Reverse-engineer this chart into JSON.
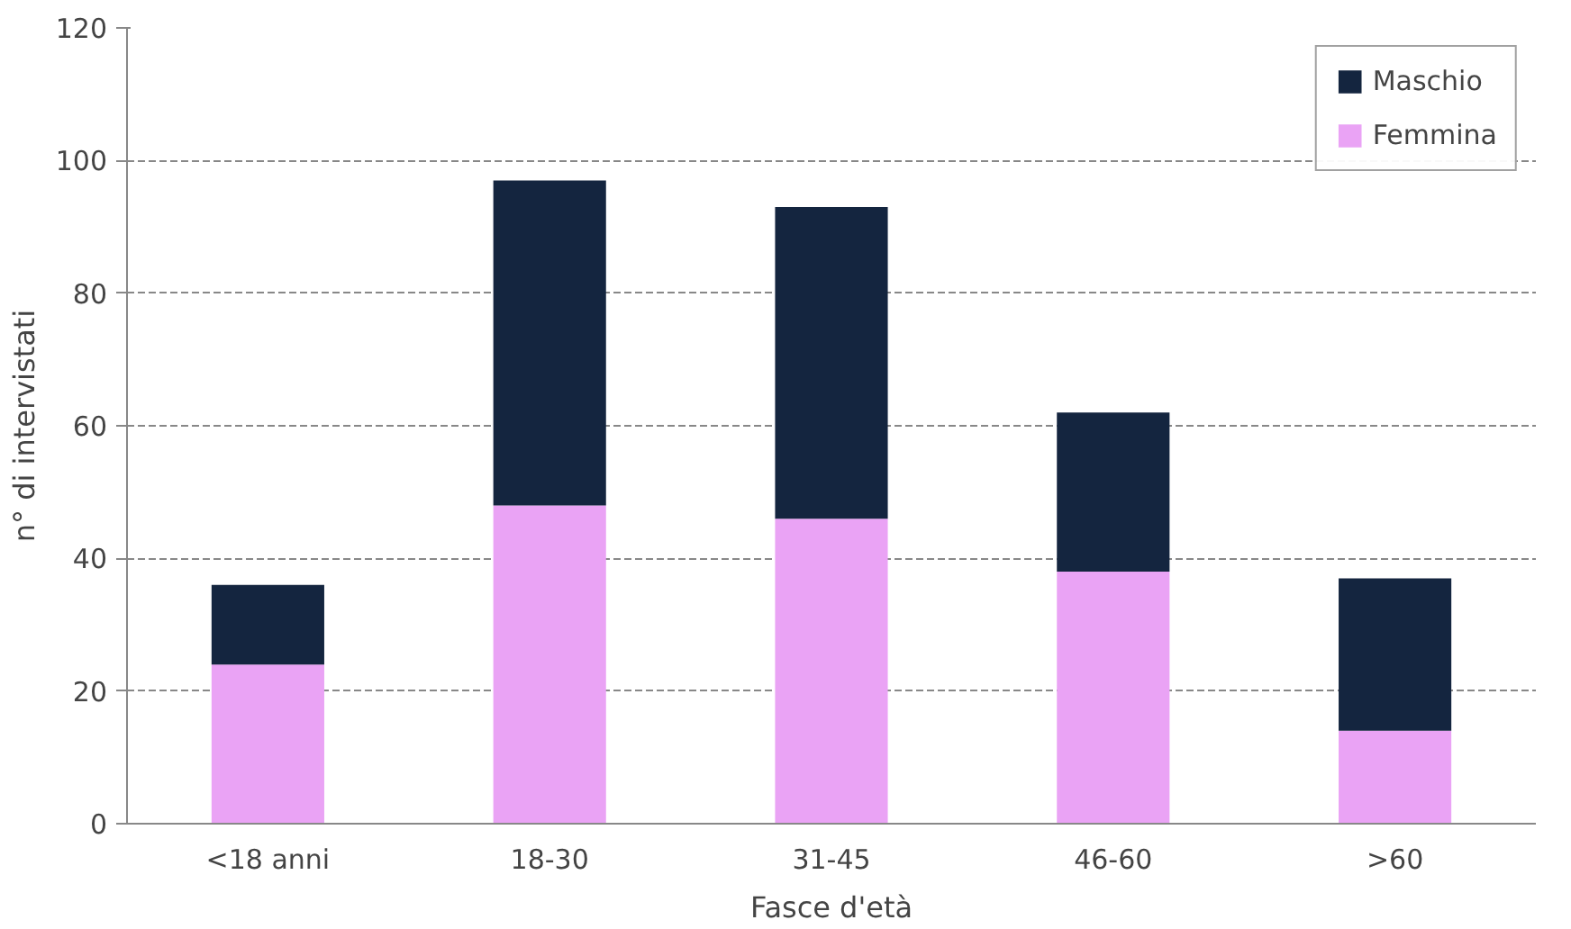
{
  "chart_data": {
    "type": "bar",
    "stacked": true,
    "xlabel": "Fasce d'età",
    "ylabel": "n° di intervistati",
    "categories": [
      "<18 anni",
      "18-30",
      "31-45",
      "46-60",
      ">60"
    ],
    "series": [
      {
        "name": "Femmina",
        "color": "#eaa3f5",
        "values": [
          24,
          48,
          46,
          38,
          14
        ]
      },
      {
        "name": "Maschio",
        "color": "#14253f",
        "values": [
          12,
          49,
          47,
          24,
          23
        ]
      }
    ],
    "ylim": [
      0,
      120
    ],
    "yticks": [
      0,
      20,
      40,
      60,
      80,
      100,
      120
    ],
    "grid": "y",
    "legend": "top right"
  }
}
